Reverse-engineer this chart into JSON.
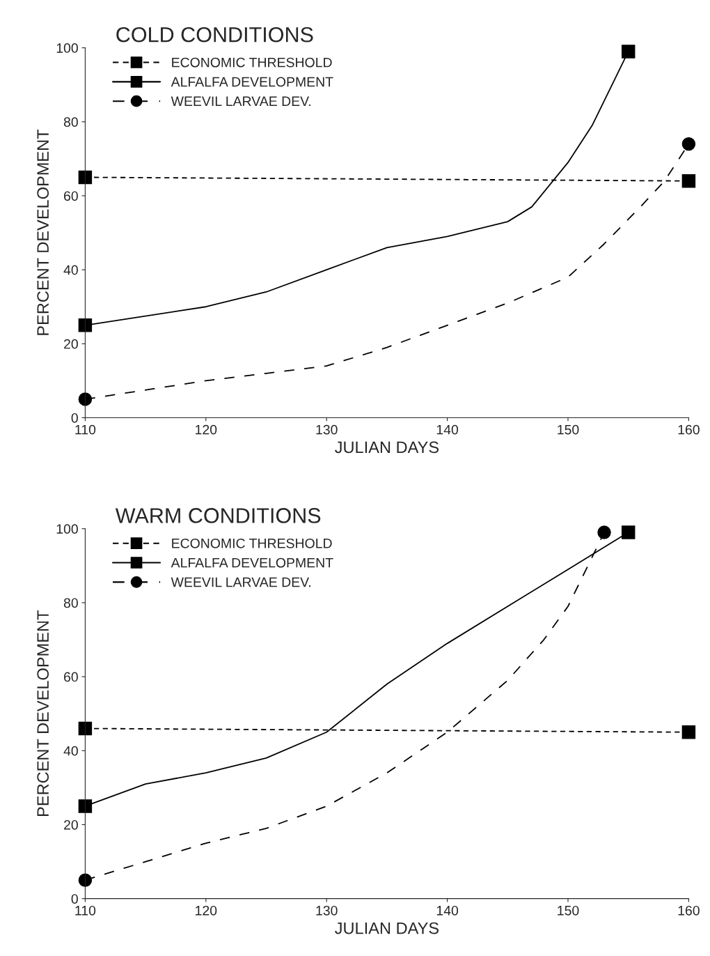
{
  "chart_data": [
    {
      "type": "line",
      "title": "COLD CONDITIONS",
      "xlabel": "JULIAN DAYS",
      "ylabel": "PERCENT DEVELOPMENT",
      "xlim": [
        110,
        160
      ],
      "xticks": [
        110,
        120,
        130,
        140,
        150,
        160
      ],
      "ylim": [
        0,
        100
      ],
      "yticks": [
        0,
        20,
        40,
        60,
        80,
        100
      ],
      "grid": false,
      "legend": "top left",
      "series": [
        {
          "name": "ECONOMIC THRESHOLD",
          "color": "#000000",
          "marker": "square",
          "line_style": "dotted",
          "x": [
            110,
            160
          ],
          "values": [
            65,
            64
          ]
        },
        {
          "name": "ALFALFA DEVELOPMENT",
          "color": "#000000",
          "line_style": "solid",
          "x": [
            110,
            120,
            125,
            130,
            135,
            140,
            145,
            147,
            150,
            152,
            155
          ],
          "values": [
            25,
            30,
            34,
            40,
            46,
            49,
            53,
            57,
            69,
            79,
            99
          ]
        },
        {
          "type": "scatter",
          "color": "#000000",
          "marker": "square",
          "x": [
            110,
            155
          ],
          "values": [
            25,
            99
          ]
        },
        {
          "name": "WEEVIL LARVAE DEV.",
          "color": "#000000",
          "line_style": "dashed",
          "x": [
            110,
            120,
            125,
            130,
            135,
            140,
            145,
            150,
            153,
            156,
            158,
            160
          ],
          "values": [
            5,
            10,
            12,
            14,
            19,
            25,
            31,
            38,
            47,
            57,
            64,
            74
          ]
        },
        {
          "type": "scatter",
          "color": "#000000",
          "marker": "circle",
          "x": [
            110,
            160
          ],
          "values": [
            5,
            74
          ]
        }
      ]
    },
    {
      "type": "line",
      "title": "WARM CONDITIONS",
      "xlabel": "JULIAN DAYS",
      "ylabel": "PERCENT DEVELOPMENT",
      "xlim": [
        110,
        160
      ],
      "xticks": [
        110,
        120,
        130,
        140,
        150,
        160
      ],
      "ylim": [
        0,
        100
      ],
      "yticks": [
        0,
        20,
        40,
        60,
        80,
        100
      ],
      "grid": false,
      "legend": "top left",
      "series": [
        {
          "name": "ECONOMIC THRESHOLD",
          "color": "#000000",
          "marker": "square",
          "line_style": "dotted",
          "x": [
            110,
            160
          ],
          "values": [
            46,
            45
          ]
        },
        {
          "name": "ALFALFA DEVELOPMENT",
          "color": "#000000",
          "line_style": "solid",
          "x": [
            110,
            115,
            120,
            125,
            130,
            135,
            140,
            145,
            150,
            155
          ],
          "values": [
            25,
            31,
            34,
            38,
            45,
            58,
            69,
            79,
            89,
            99
          ]
        },
        {
          "type": "scatter",
          "color": "#000000",
          "marker": "square",
          "x": [
            110,
            155
          ],
          "values": [
            25,
            99
          ]
        },
        {
          "name": "WEEVIL LARVAE DEV.",
          "color": "#000000",
          "line_style": "dashed",
          "x": [
            110,
            115,
            120,
            125,
            130,
            135,
            140,
            145,
            148,
            150,
            153
          ],
          "values": [
            5,
            10,
            15,
            19,
            25,
            34,
            45,
            59,
            70,
            79,
            99
          ]
        },
        {
          "type": "scatter",
          "color": "#000000",
          "marker": "circle",
          "x": [
            110,
            153
          ],
          "values": [
            5,
            99
          ]
        }
      ]
    }
  ]
}
